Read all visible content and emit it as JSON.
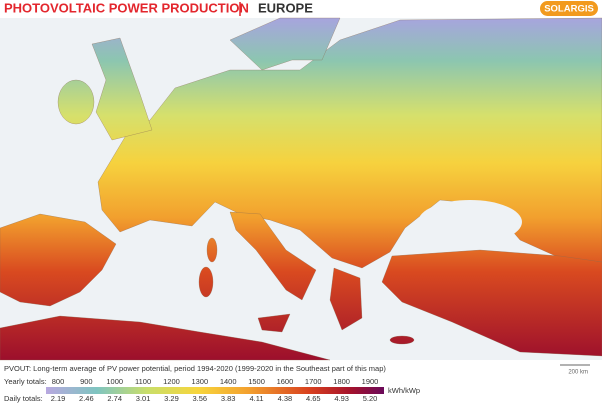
{
  "header": {
    "title": "PHOTOVOLTAIC POWER PRODUCTION",
    "region": "EUROPE",
    "brand": "SOLARGIS"
  },
  "map": {
    "scale": "200 km"
  },
  "legend": {
    "caption": "PVOUT: Long-term average of PV power potential, period 1994-2020 (1999-2020 in the Southeast part of this map)",
    "yearly_label": "Yearly totals:",
    "yearly": [
      "800",
      "900",
      "1000",
      "1100",
      "1200",
      "1300",
      "1400",
      "1500",
      "1600",
      "1700",
      "1800",
      "1900"
    ],
    "unit": "kWh/kWp",
    "daily_label": "Daily totals:",
    "daily": [
      "2.19",
      "2.46",
      "2.74",
      "3.01",
      "3.29",
      "3.56",
      "3.83",
      "4.11",
      "4.38",
      "4.65",
      "4.93",
      "5.20"
    ]
  }
}
